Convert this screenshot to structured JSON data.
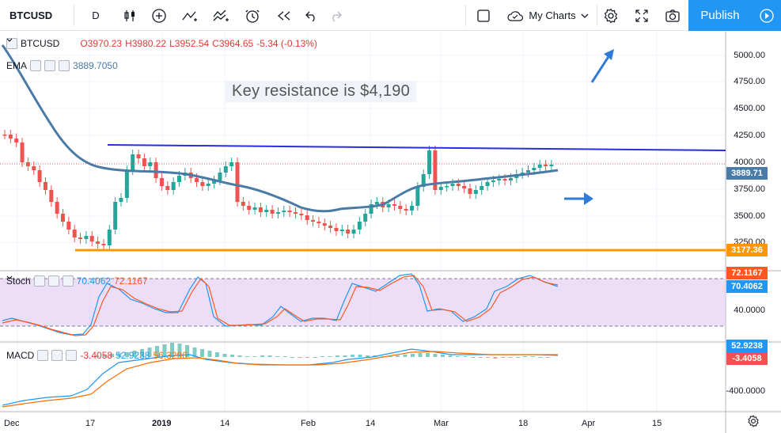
{
  "toolbar": {
    "symbol": "BTCUSD",
    "interval": "D",
    "my_charts": "My Charts",
    "publish": "Publish"
  },
  "legend": {
    "symbol": "BTCUSD",
    "open": "O3970.23",
    "high": "H3980.22",
    "low": "L3952.54",
    "close": "C3964.65",
    "change": "-5.34 (-0.13%)",
    "ema_label": "EMA",
    "ema_value": "3889.7050"
  },
  "annotation": "Key resistance is $4,190",
  "price_axis": [
    "5000.00",
    "4750.00",
    "4500.00",
    "4250.00",
    "4000.00",
    "3750.00",
    "3500.00",
    "3250.00"
  ],
  "price_tags": {
    "ema": "3889.71",
    "support": "3177.36"
  },
  "stoch": {
    "label": "Stoch",
    "k": "70.4062",
    "d": "72.1167",
    "axis": "40.0000",
    "tag_d": "72.1167",
    "tag_k": "70.4062"
  },
  "macd": {
    "label": "MACD",
    "hist": "-3.4058",
    "macd": "52.9238",
    "signal": "56.3296",
    "axis": "-400.0000",
    "tag_macd": "52.9238",
    "tag_hist": "-3.4058"
  },
  "time_axis": [
    "Dec",
    "17",
    "2019",
    "14",
    "Feb",
    "14",
    "Mar",
    "18",
    "Apr",
    "15"
  ],
  "colors": {
    "up": "#26a69a",
    "down": "#ef5350",
    "ema": "#4a7ba6",
    "resistance": "#2a2de0",
    "support": "#ff9800",
    "arrow": "#2f7bd6",
    "stoch_k": "#2196f3",
    "stoch_d": "#ff5722",
    "stoch_band": "#e1c8f4",
    "macd_line": "#2196f3",
    "signal_line": "#ff6d00",
    "publish": "#2196f3"
  }
}
